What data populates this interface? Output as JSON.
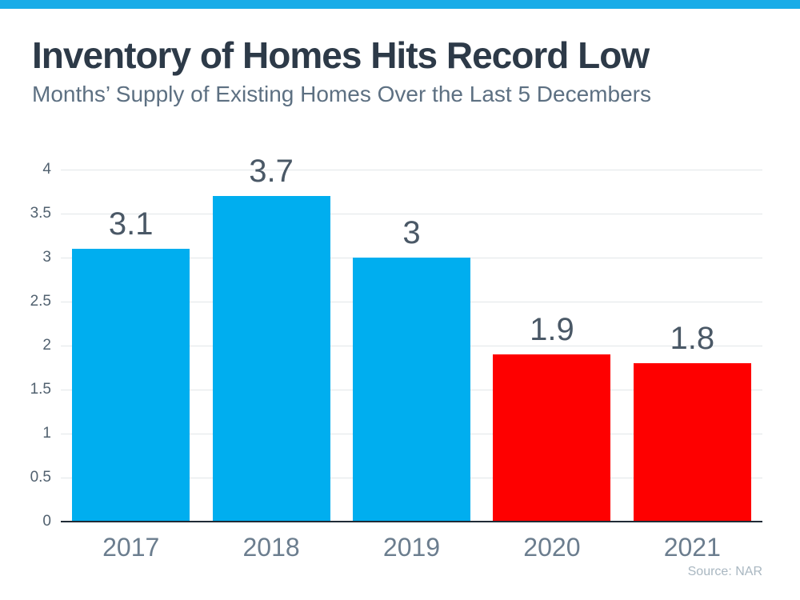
{
  "page": {
    "background": "#FFFFFF",
    "accent_bar_color": "#18ACE8"
  },
  "chart_data": {
    "type": "bar",
    "title": "Inventory of Homes Hits Record Low",
    "subtitle": "Months’ Supply of Existing Homes Over the Last 5 Decembers",
    "categories": [
      "2017",
      "2018",
      "2019",
      "2020",
      "2021"
    ],
    "values": [
      3.1,
      3.7,
      3,
      1.9,
      1.8
    ],
    "value_labels": [
      "3.1",
      "3.7",
      "3",
      "1.9",
      "1.8"
    ],
    "bar_colors": [
      "#00AEEF",
      "#00AEEF",
      "#00AEEF",
      "#FE0000",
      "#FE0000"
    ],
    "xlabel": "",
    "ylabel": "",
    "ylim": [
      0,
      4
    ],
    "yticks": [
      0,
      0.5,
      1,
      1.5,
      2,
      2.5,
      3,
      3.5,
      4
    ],
    "grid": true,
    "gridline_color": "#E3E6E9",
    "axis_line_color": "#202B36",
    "legend": "none",
    "source": "Source: NAR"
  }
}
